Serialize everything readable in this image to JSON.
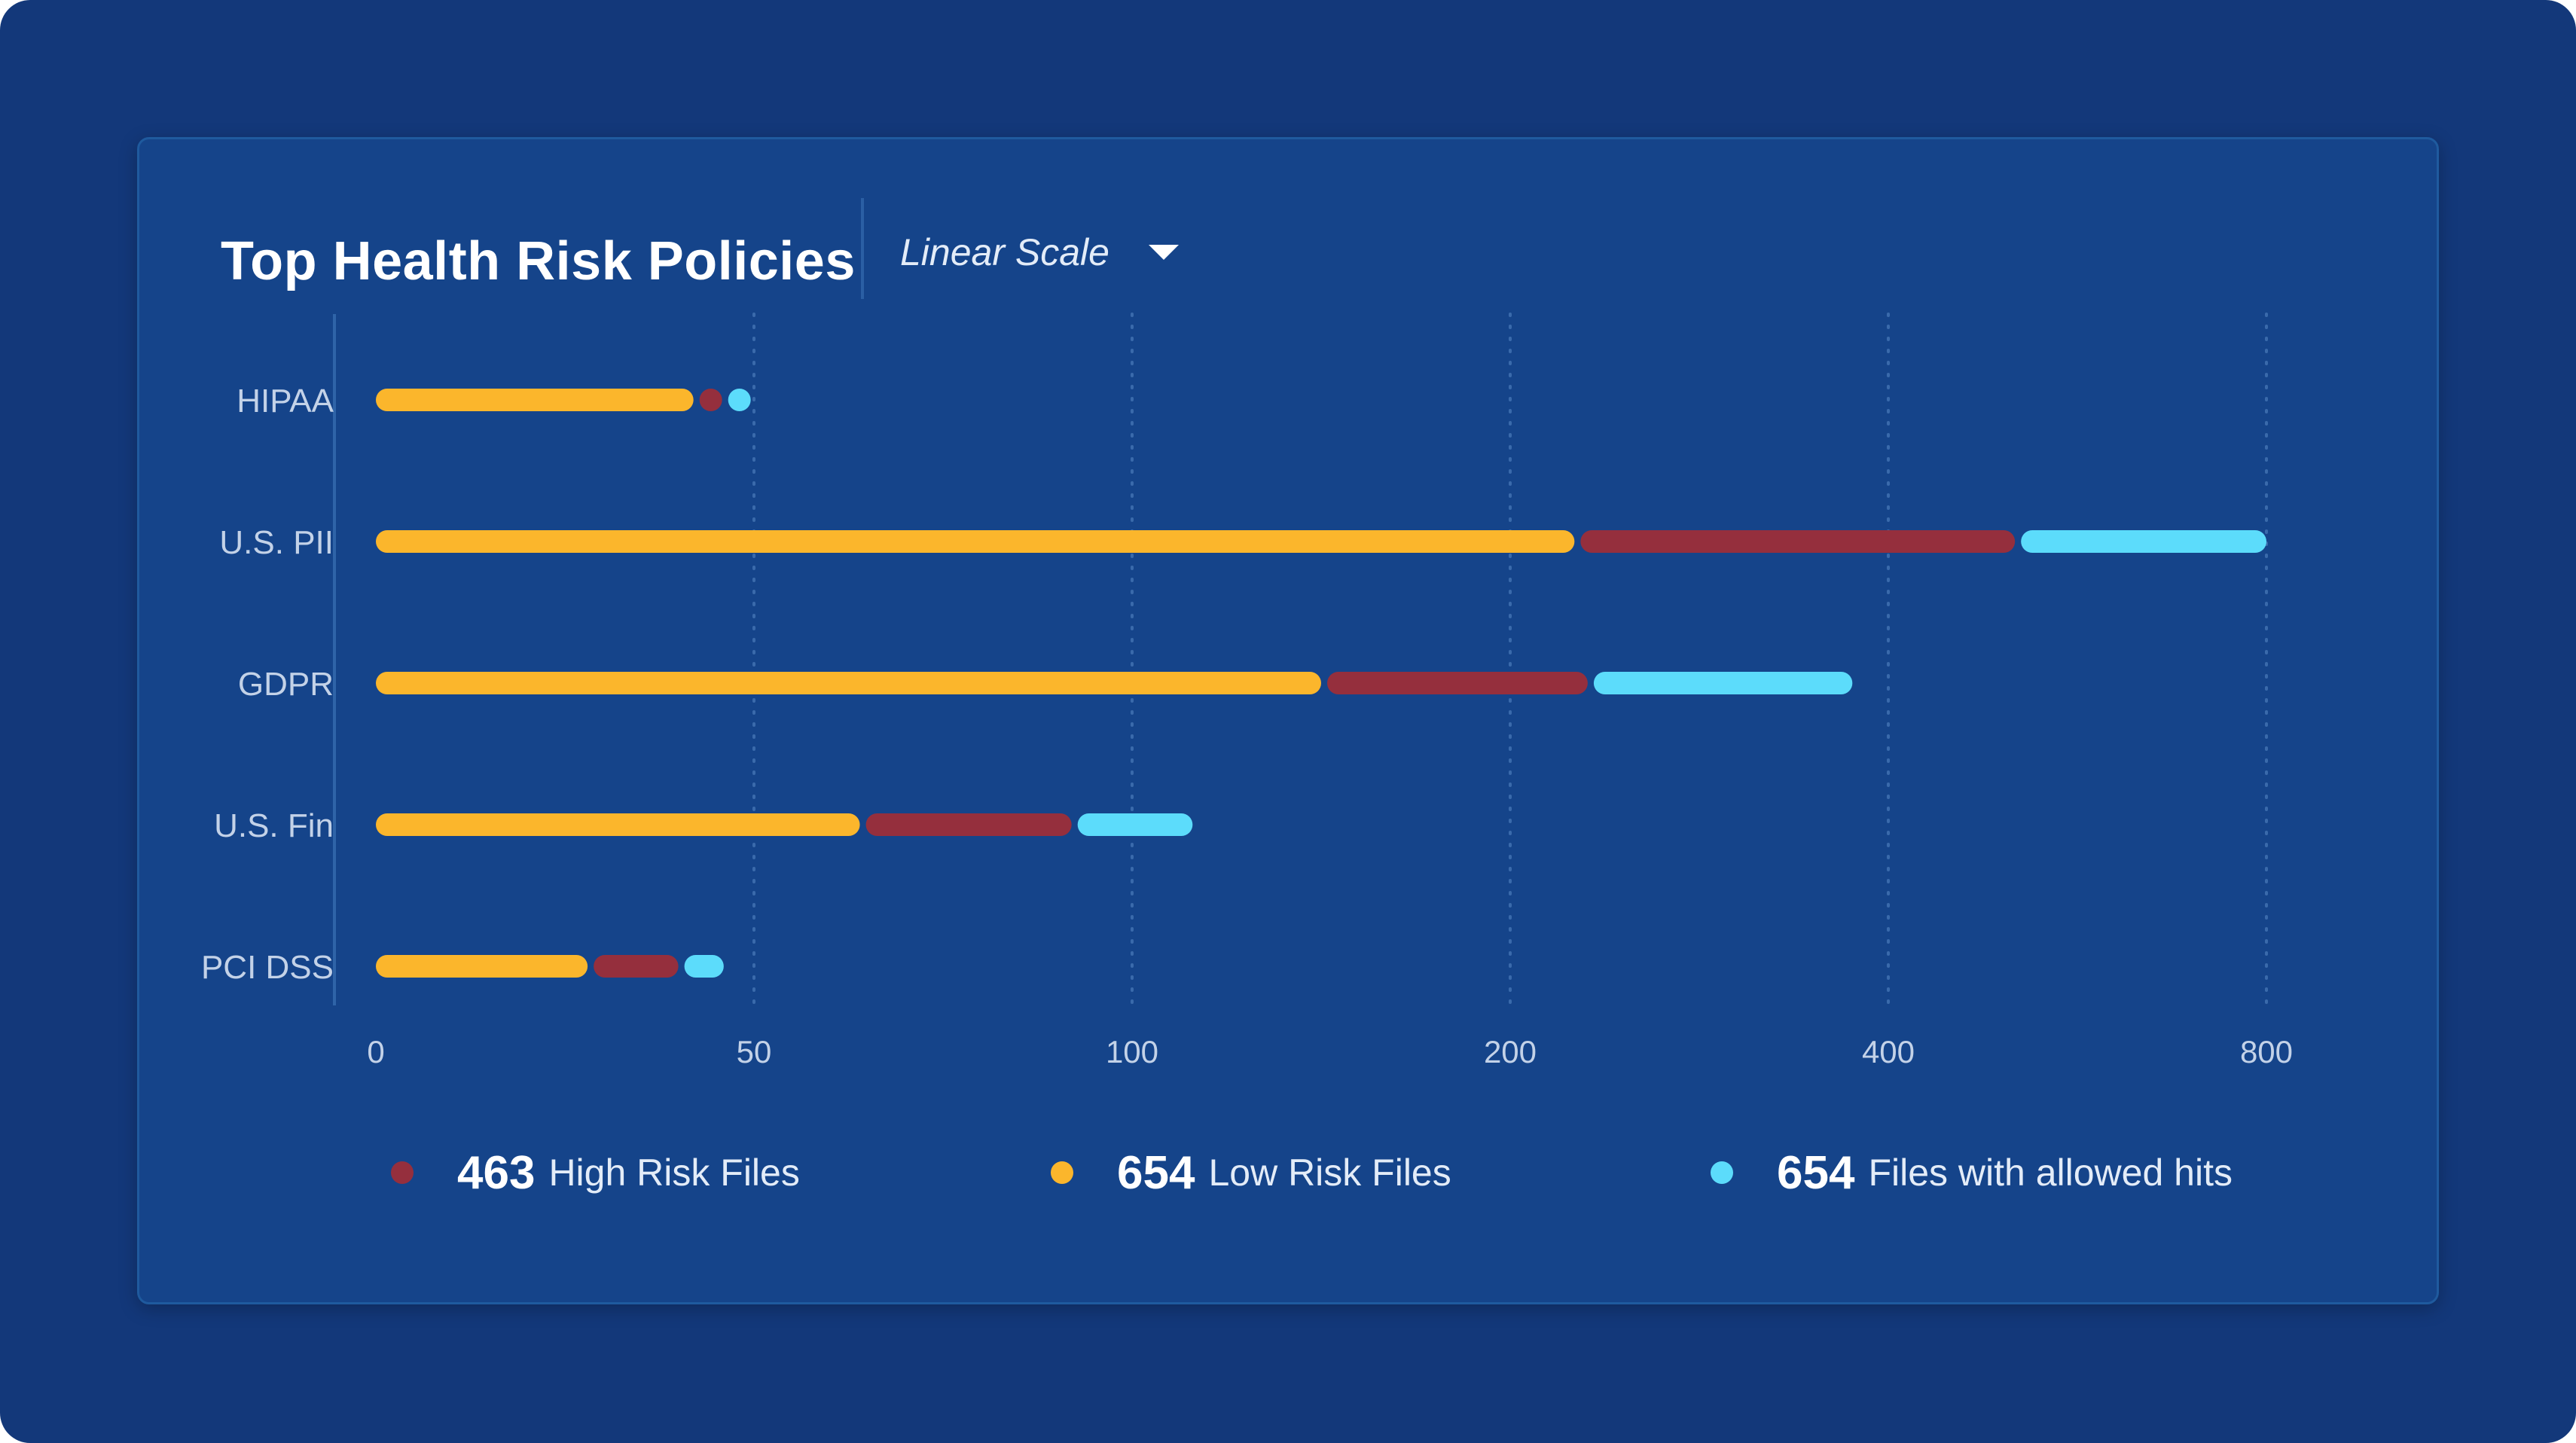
{
  "header": {
    "title": "Top Health Risk Policies",
    "scale_selector": {
      "label": "Linear Scale",
      "icon": "caret-down-icon"
    }
  },
  "colors": {
    "page_background": "#13387a",
    "card_background": "#15448a",
    "low_risk": "#fbb62c",
    "high_risk": "#952f3d",
    "allowed_hits": "#5cdcfb",
    "gridline": "#3a6aab",
    "axis_text": "#c3d2e8"
  },
  "legend": [
    {
      "key": "high_risk",
      "count": "463",
      "label": "High Risk Files",
      "color": "#952f3d"
    },
    {
      "key": "low_risk",
      "count": "654",
      "label": "Low Risk Files",
      "color": "#fbb62c"
    },
    {
      "key": "allowed_hits",
      "count": "654",
      "label": "Files with allowed hits",
      "color": "#5cdcfb"
    }
  ],
  "chart_data": {
    "type": "bar",
    "orientation": "horizontal",
    "stacked": true,
    "categories": [
      "HIPAA",
      "U.S. PII",
      "GDPR",
      "U.S. Fin",
      "PCI DSS"
    ],
    "x_ticks": [
      0,
      50,
      100,
      200,
      400,
      800
    ],
    "x_tick_labels": [
      "0",
      "50",
      "100",
      "200",
      "400",
      "800"
    ],
    "x_scale": "piecewise-doubling",
    "xlim": [
      0,
      800
    ],
    "grid": {
      "x": true,
      "y": false,
      "style": "dotted"
    },
    "legend_position": "bottom",
    "series": [
      {
        "name": "Low Risk Files",
        "color": "#fbb62c",
        "values": [
          42,
          234,
          150,
          64,
          28
        ]
      },
      {
        "name": "High Risk Files",
        "color": "#952f3d",
        "values": [
          3,
          300,
          91,
          28,
          12
        ]
      },
      {
        "name": "Files with allowed hits",
        "color": "#5cdcfb",
        "values": [
          3,
          286,
          140,
          24,
          6
        ]
      }
    ]
  }
}
